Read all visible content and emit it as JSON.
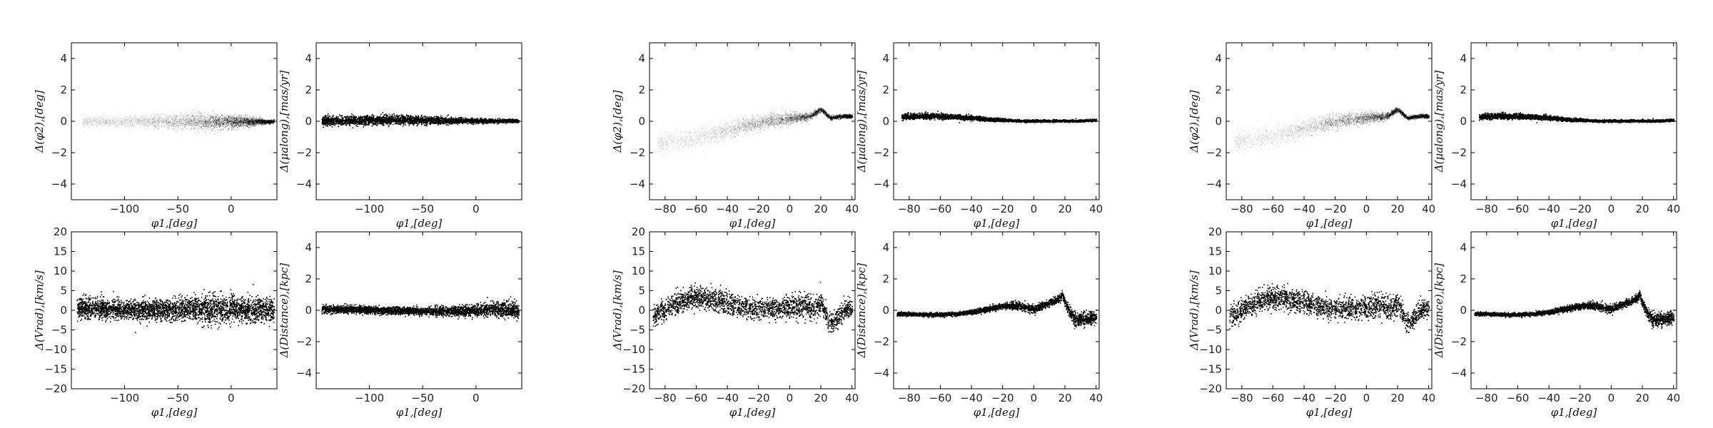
{
  "chart_data": [
    {
      "type": "scatter",
      "panel": "g1-phi2",
      "xlabel": "$\\phi_1,[deg]$",
      "ylabel": "$\\Delta(\\phi_2),[deg]$",
      "xlim": [
        -150,
        43
      ],
      "ylim": [
        -5,
        5
      ],
      "xticks": [
        -100,
        -50,
        0
      ],
      "yticks": [
        -4,
        -2,
        0,
        2,
        4
      ],
      "x": [
        -140,
        -120,
        -100,
        -80,
        -60,
        -40,
        -20,
        0,
        10,
        20,
        30,
        40
      ],
      "y": [
        0,
        0,
        0,
        0,
        0,
        0,
        0,
        0,
        0,
        0,
        0,
        0
      ],
      "spread": [
        0.3,
        0.3,
        0.35,
        0.35,
        0.4,
        0.4,
        0.4,
        0.35,
        0.3,
        0.2,
        0.12,
        0.1
      ],
      "density": "faint-to-dense"
    },
    {
      "type": "scatter",
      "panel": "g1-pm",
      "xlabel": "$\\phi_1,[deg]$",
      "ylabel": "$\\Delta(\\mu_{along}),[mas/yr]$",
      "xlim": [
        -150,
        43
      ],
      "ylim": [
        -5,
        5
      ],
      "xticks": [
        -100,
        -50,
        0
      ],
      "yticks": [
        -4,
        -2,
        0,
        2,
        4
      ],
      "x": [
        -145,
        -120,
        -100,
        -80,
        -60,
        -40,
        -20,
        0,
        20,
        40
      ],
      "y": [
        0.05,
        0.08,
        0.1,
        0.1,
        0.1,
        0.08,
        0.06,
        0.05,
        0.05,
        0.05
      ],
      "spread": [
        0.25,
        0.25,
        0.25,
        0.25,
        0.22,
        0.2,
        0.15,
        0.12,
        0.1,
        0.08
      ],
      "density": "dense"
    },
    {
      "type": "scatter",
      "panel": "g1-vrad",
      "xlabel": "$\\phi_1,[deg]$",
      "ylabel": "$\\Delta(V_{rad}),[km/s]$",
      "xlim": [
        -150,
        43
      ],
      "ylim": [
        -20,
        20
      ],
      "xticks": [
        -100,
        -50,
        0
      ],
      "yticks": [
        -20,
        -15,
        -10,
        -5,
        0,
        5,
        10,
        15,
        20
      ],
      "x": [
        -145,
        -120,
        -100,
        -80,
        -60,
        -40,
        -20,
        0,
        20,
        40
      ],
      "y": [
        0.5,
        0.5,
        0.3,
        0.2,
        0.2,
        0.5,
        0.5,
        0.5,
        0.3,
        0.2
      ],
      "spread": [
        2.3,
        2.2,
        2.0,
        2.0,
        2.2,
        2.5,
        3.0,
        2.8,
        2.5,
        2.5
      ],
      "density": "dense"
    },
    {
      "type": "scatter",
      "panel": "g1-dist",
      "xlabel": "$\\phi_1,[deg]$",
      "ylabel": "$\\Delta(Distance),[kpc]$",
      "xlim": [
        -150,
        43
      ],
      "ylim": [
        -5,
        5
      ],
      "xticks": [
        -100,
        -50,
        0
      ],
      "yticks": [
        -4,
        -2,
        0,
        2,
        4
      ],
      "x": [
        -145,
        -120,
        -100,
        -80,
        -60,
        -40,
        -20,
        0,
        20,
        40
      ],
      "y": [
        0.1,
        0.1,
        0.05,
        0.0,
        0.0,
        -0.05,
        0.0,
        0.0,
        0.1,
        0.0
      ],
      "spread": [
        0.2,
        0.2,
        0.2,
        0.2,
        0.2,
        0.22,
        0.25,
        0.3,
        0.4,
        0.45
      ],
      "density": "dense"
    },
    {
      "type": "scatter",
      "panel": "g2-phi2",
      "xlabel": "$\\phi_1,[deg]$",
      "ylabel": "$\\Delta(\\phi_2),[deg]$",
      "xlim": [
        -90,
        42
      ],
      "ylim": [
        -5,
        5
      ],
      "xticks": [
        -80,
        -60,
        -40,
        -20,
        0,
        20,
        40
      ],
      "yticks": [
        -4,
        -2,
        0,
        2,
        4
      ],
      "x": [
        -85,
        -70,
        -60,
        -50,
        -40,
        -30,
        -20,
        -10,
        0,
        5,
        10,
        14,
        17,
        20,
        23,
        26,
        30,
        35,
        40
      ],
      "y": [
        -1.4,
        -1.2,
        -1.0,
        -0.8,
        -0.6,
        -0.3,
        -0.1,
        0.1,
        0.2,
        0.25,
        0.3,
        0.4,
        0.6,
        0.8,
        0.5,
        0.25,
        0.3,
        0.35,
        0.35
      ],
      "spread": [
        0.6,
        0.6,
        0.6,
        0.55,
        0.5,
        0.45,
        0.4,
        0.35,
        0.3,
        0.25,
        0.2,
        0.15,
        0.15,
        0.12,
        0.12,
        0.1,
        0.1,
        0.1,
        0.1
      ],
      "density": "faint-to-dense"
    },
    {
      "type": "scatter",
      "panel": "g2-pm",
      "xlabel": "$\\phi_1,[deg]$",
      "ylabel": "$\\Delta(\\mu_{along}),[mas/yr]$",
      "xlim": [
        -90,
        42
      ],
      "ylim": [
        -5,
        5
      ],
      "xticks": [
        -80,
        -60,
        -40,
        -20,
        0,
        20,
        40
      ],
      "yticks": [
        -4,
        -2,
        0,
        2,
        4
      ],
      "x": [
        -85,
        -70,
        -60,
        -50,
        -40,
        -30,
        -20,
        -10,
        0,
        10,
        20,
        30,
        40
      ],
      "y": [
        0.3,
        0.35,
        0.35,
        0.3,
        0.25,
        0.15,
        0.1,
        0.05,
        0.05,
        0.05,
        0.05,
        0.05,
        0.1
      ],
      "spread": [
        0.15,
        0.15,
        0.15,
        0.12,
        0.12,
        0.1,
        0.08,
        0.06,
        0.06,
        0.06,
        0.06,
        0.06,
        0.06
      ],
      "density": "dense"
    },
    {
      "type": "scatter",
      "panel": "g2-vrad",
      "xlabel": "$\\phi_1,[deg]$",
      "ylabel": "$\\Delta(V_{rad}),[km/s]$",
      "xlim": [
        -90,
        42
      ],
      "ylim": [
        -20,
        20
      ],
      "xticks": [
        -80,
        -60,
        -40,
        -20,
        0,
        20,
        40
      ],
      "yticks": [
        -20,
        -15,
        -10,
        -5,
        0,
        5,
        10,
        15,
        20
      ],
      "x": [
        -88,
        -80,
        -70,
        -60,
        -50,
        -40,
        -30,
        -20,
        -10,
        0,
        10,
        15,
        20,
        25,
        30,
        35,
        40
      ],
      "y": [
        -1.5,
        0.5,
        2.5,
        3.5,
        3.0,
        2.0,
        1.0,
        0.5,
        0.5,
        1.0,
        1.5,
        0.0,
        2.0,
        -3.0,
        -2.0,
        0.0,
        1.0
      ],
      "spread": [
        2.0,
        2.2,
        2.3,
        2.4,
        2.4,
        2.3,
        2.2,
        2.2,
        2.2,
        2.4,
        2.5,
        2.5,
        2.4,
        2.0,
        2.0,
        2.0,
        2.0
      ],
      "density": "sparse"
    },
    {
      "type": "scatter",
      "panel": "g2-dist",
      "xlabel": "$\\phi_1,[deg]$",
      "ylabel": "$\\Delta(Distance),[kpc]$",
      "xlim": [
        -90,
        42
      ],
      "ylim": [
        -5,
        5
      ],
      "xticks": [
        -80,
        -60,
        -40,
        -20,
        0,
        20,
        40
      ],
      "yticks": [
        -4,
        -2,
        0,
        2,
        4
      ],
      "x": [
        -88,
        -80,
        -70,
        -60,
        -50,
        -40,
        -30,
        -20,
        -10,
        0,
        5,
        10,
        15,
        18,
        22,
        26,
        30,
        35,
        40
      ],
      "y": [
        -0.2,
        -0.2,
        -0.25,
        -0.25,
        -0.2,
        -0.1,
        0.1,
        0.3,
        0.3,
        0.1,
        0.3,
        0.5,
        0.7,
        1.0,
        0.0,
        -0.5,
        -0.6,
        -0.5,
        -0.4
      ],
      "spread": [
        0.1,
        0.1,
        0.1,
        0.1,
        0.1,
        0.12,
        0.15,
        0.15,
        0.18,
        0.2,
        0.2,
        0.2,
        0.2,
        0.2,
        0.3,
        0.35,
        0.35,
        0.35,
        0.35
      ],
      "density": "dense"
    },
    {
      "type": "scatter",
      "panel": "g3-phi2",
      "xlabel": "$\\phi_1,[deg]$",
      "ylabel": "$\\Delta(\\phi_2),[deg]$",
      "xlim": [
        -90,
        42
      ],
      "ylim": [
        -5,
        5
      ],
      "xticks": [
        -80,
        -60,
        -40,
        -20,
        0,
        20,
        40
      ],
      "yticks": [
        -4,
        -2,
        0,
        2,
        4
      ],
      "x": [
        -85,
        -70,
        -60,
        -50,
        -40,
        -30,
        -20,
        -10,
        0,
        5,
        10,
        14,
        17,
        20,
        23,
        26,
        30,
        35,
        40
      ],
      "y": [
        -1.3,
        -1.1,
        -0.9,
        -0.7,
        -0.5,
        -0.2,
        0.0,
        0.15,
        0.25,
        0.3,
        0.3,
        0.4,
        0.6,
        0.8,
        0.5,
        0.25,
        0.3,
        0.35,
        0.35
      ],
      "spread": [
        0.6,
        0.6,
        0.6,
        0.55,
        0.5,
        0.45,
        0.4,
        0.35,
        0.3,
        0.25,
        0.2,
        0.15,
        0.15,
        0.12,
        0.12,
        0.1,
        0.1,
        0.1,
        0.1
      ],
      "density": "faint-to-dense"
    },
    {
      "type": "scatter",
      "panel": "g3-pm",
      "xlabel": "$\\phi_1,[deg]$",
      "ylabel": "$\\Delta(\\mu_{along}),[mas/yr]$",
      "xlim": [
        -90,
        42
      ],
      "ylim": [
        -5,
        5
      ],
      "xticks": [
        -80,
        -60,
        -40,
        -20,
        0,
        20,
        40
      ],
      "yticks": [
        -4,
        -2,
        0,
        2,
        4
      ],
      "x": [
        -85,
        -70,
        -60,
        -50,
        -40,
        -30,
        -20,
        -10,
        0,
        10,
        20,
        30,
        40
      ],
      "y": [
        0.3,
        0.35,
        0.35,
        0.3,
        0.25,
        0.15,
        0.1,
        0.05,
        0.05,
        0.05,
        0.05,
        0.05,
        0.1
      ],
      "spread": [
        0.15,
        0.15,
        0.15,
        0.12,
        0.12,
        0.1,
        0.08,
        0.06,
        0.06,
        0.06,
        0.06,
        0.06,
        0.06
      ],
      "density": "dense"
    },
    {
      "type": "scatter",
      "panel": "g3-vrad",
      "xlabel": "$\\phi_1,[deg]$",
      "ylabel": "$\\Delta(V_{rad}),[km/s]$",
      "xlim": [
        -90,
        42
      ],
      "ylim": [
        -20,
        20
      ],
      "xticks": [
        -80,
        -60,
        -40,
        -20,
        0,
        20,
        40
      ],
      "yticks": [
        -20,
        -15,
        -10,
        -5,
        0,
        5,
        10,
        15,
        20
      ],
      "x": [
        -88,
        -80,
        -70,
        -60,
        -50,
        -40,
        -30,
        -20,
        -10,
        0,
        10,
        15,
        20,
        25,
        30,
        35,
        40
      ],
      "y": [
        -1.5,
        0.5,
        2.5,
        3.5,
        3.0,
        2.0,
        1.0,
        0.5,
        0.5,
        1.0,
        1.5,
        0.0,
        2.0,
        -3.0,
        -2.0,
        0.0,
        1.0
      ],
      "spread": [
        2.0,
        2.2,
        2.3,
        2.4,
        2.4,
        2.3,
        2.2,
        2.2,
        2.2,
        2.4,
        2.5,
        2.5,
        2.4,
        2.0,
        2.0,
        2.0,
        2.0
      ],
      "density": "sparse"
    },
    {
      "type": "scatter",
      "panel": "g3-dist",
      "xlabel": "$\\phi_1,[deg]$",
      "ylabel": "$\\Delta(Distance),[kpc]$",
      "xlim": [
        -90,
        42
      ],
      "ylim": [
        -5,
        5
      ],
      "xticks": [
        -80,
        -60,
        -40,
        -20,
        0,
        20,
        40
      ],
      "yticks": [
        -4,
        -2,
        0,
        2,
        4
      ],
      "x": [
        -88,
        -80,
        -70,
        -60,
        -50,
        -40,
        -30,
        -20,
        -10,
        0,
        5,
        10,
        15,
        18,
        22,
        26,
        30,
        35,
        40
      ],
      "y": [
        -0.2,
        -0.2,
        -0.25,
        -0.25,
        -0.2,
        -0.1,
        0.1,
        0.3,
        0.3,
        0.1,
        0.3,
        0.5,
        0.7,
        1.0,
        0.0,
        -0.5,
        -0.6,
        -0.5,
        -0.4
      ],
      "spread": [
        0.1,
        0.1,
        0.1,
        0.1,
        0.1,
        0.12,
        0.15,
        0.15,
        0.18,
        0.2,
        0.2,
        0.2,
        0.2,
        0.2,
        0.3,
        0.35,
        0.35,
        0.35,
        0.35
      ],
      "density": "dense"
    }
  ]
}
